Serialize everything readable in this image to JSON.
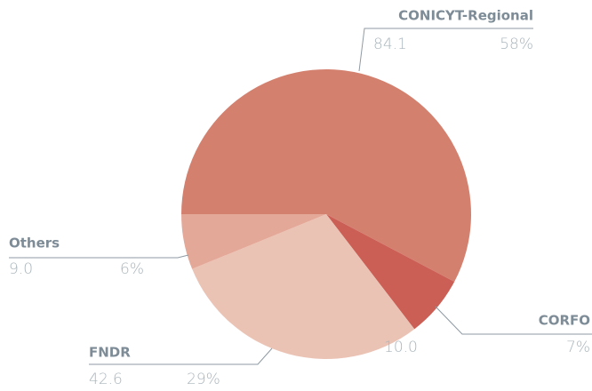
{
  "chart_data": {
    "type": "pie",
    "categories": [
      "CONICYT-Regional",
      "CORFO",
      "FNDR",
      "Others"
    ],
    "values": [
      84.1,
      10.0,
      42.6,
      9.0
    ],
    "value_labels": [
      "84.1",
      "10.0",
      "42.6",
      "9.0"
    ],
    "percent_labels": [
      "58%",
      "7%",
      "29%",
      "6%"
    ],
    "colors": [
      "#d4806f",
      "#cc5f55",
      "#ebc3b5",
      "#e4a898"
    ]
  }
}
